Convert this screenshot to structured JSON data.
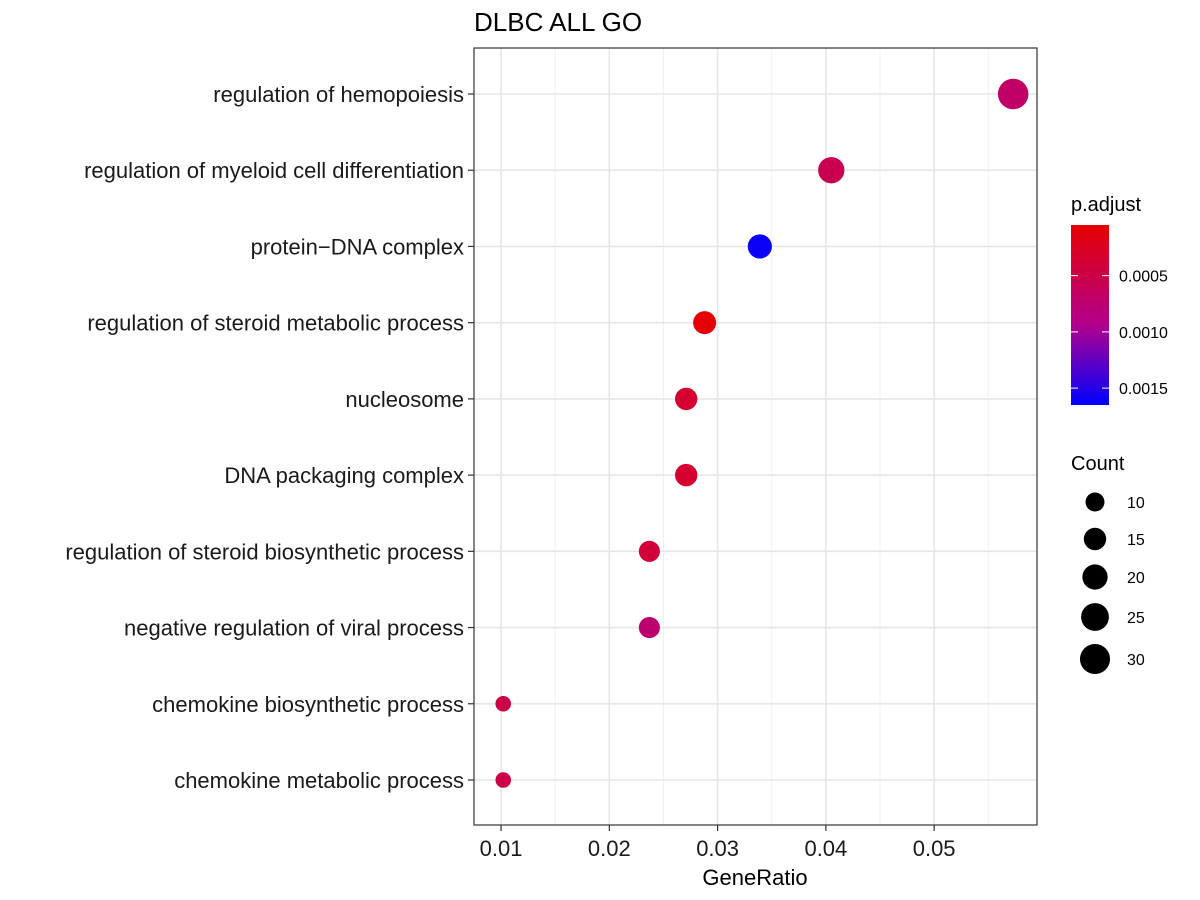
{
  "chart_data": {
    "type": "scatter",
    "title": "DLBC ALL GO",
    "xlabel": "GeneRatio",
    "ylabel": "",
    "xlim": [
      0.0075,
      0.0595
    ],
    "xticks": [
      0.01,
      0.02,
      0.03,
      0.04,
      0.05
    ],
    "xtick_labels": [
      "0.01",
      "0.02",
      "0.03",
      "0.04",
      "0.05"
    ],
    "grid": true,
    "points": [
      {
        "term": "regulation of hemopoiesis",
        "x": 0.0573,
        "count": 31,
        "p_adjust": 0.0007
      },
      {
        "term": "regulation of myeloid cell differentiation",
        "x": 0.0405,
        "count": 22,
        "p_adjust": 0.00055
      },
      {
        "term": "protein−DNA complex",
        "x": 0.0339,
        "count": 18,
        "p_adjust": 0.0016
      },
      {
        "term": "regulation of steroid metabolic process",
        "x": 0.0288,
        "count": 16,
        "p_adjust": 8e-05
      },
      {
        "term": "nucleosome",
        "x": 0.0271,
        "count": 15,
        "p_adjust": 0.00035
      },
      {
        "term": "DNA packaging complex",
        "x": 0.0271,
        "count": 15,
        "p_adjust": 0.00035
      },
      {
        "term": "regulation of steroid biosynthetic process",
        "x": 0.0237,
        "count": 13,
        "p_adjust": 0.0004
      },
      {
        "term": "negative regulation of viral process",
        "x": 0.0237,
        "count": 13,
        "p_adjust": 0.00075
      },
      {
        "term": "chemokine biosynthetic process",
        "x": 0.0102,
        "count": 6,
        "p_adjust": 0.0005
      },
      {
        "term": "chemokine metabolic process",
        "x": 0.0102,
        "count": 6,
        "p_adjust": 0.0005
      }
    ],
    "color_legend": {
      "title": "p.adjust",
      "range": [
        5e-05,
        0.00165
      ],
      "low_color": "#E41A1C",
      "low_color_hex": "#E60000",
      "high_color": "#0000FF",
      "ticks": [
        0.0005,
        0.001,
        0.0015
      ],
      "tick_labels": [
        "0.0005",
        "0.0010",
        "0.0015"
      ]
    },
    "size_legend": {
      "title": "Count",
      "values": [
        10,
        15,
        20,
        25,
        30
      ],
      "labels": [
        "10",
        "15",
        "20",
        "25",
        "30"
      ],
      "color": "#000000"
    },
    "legend_position": "right"
  }
}
